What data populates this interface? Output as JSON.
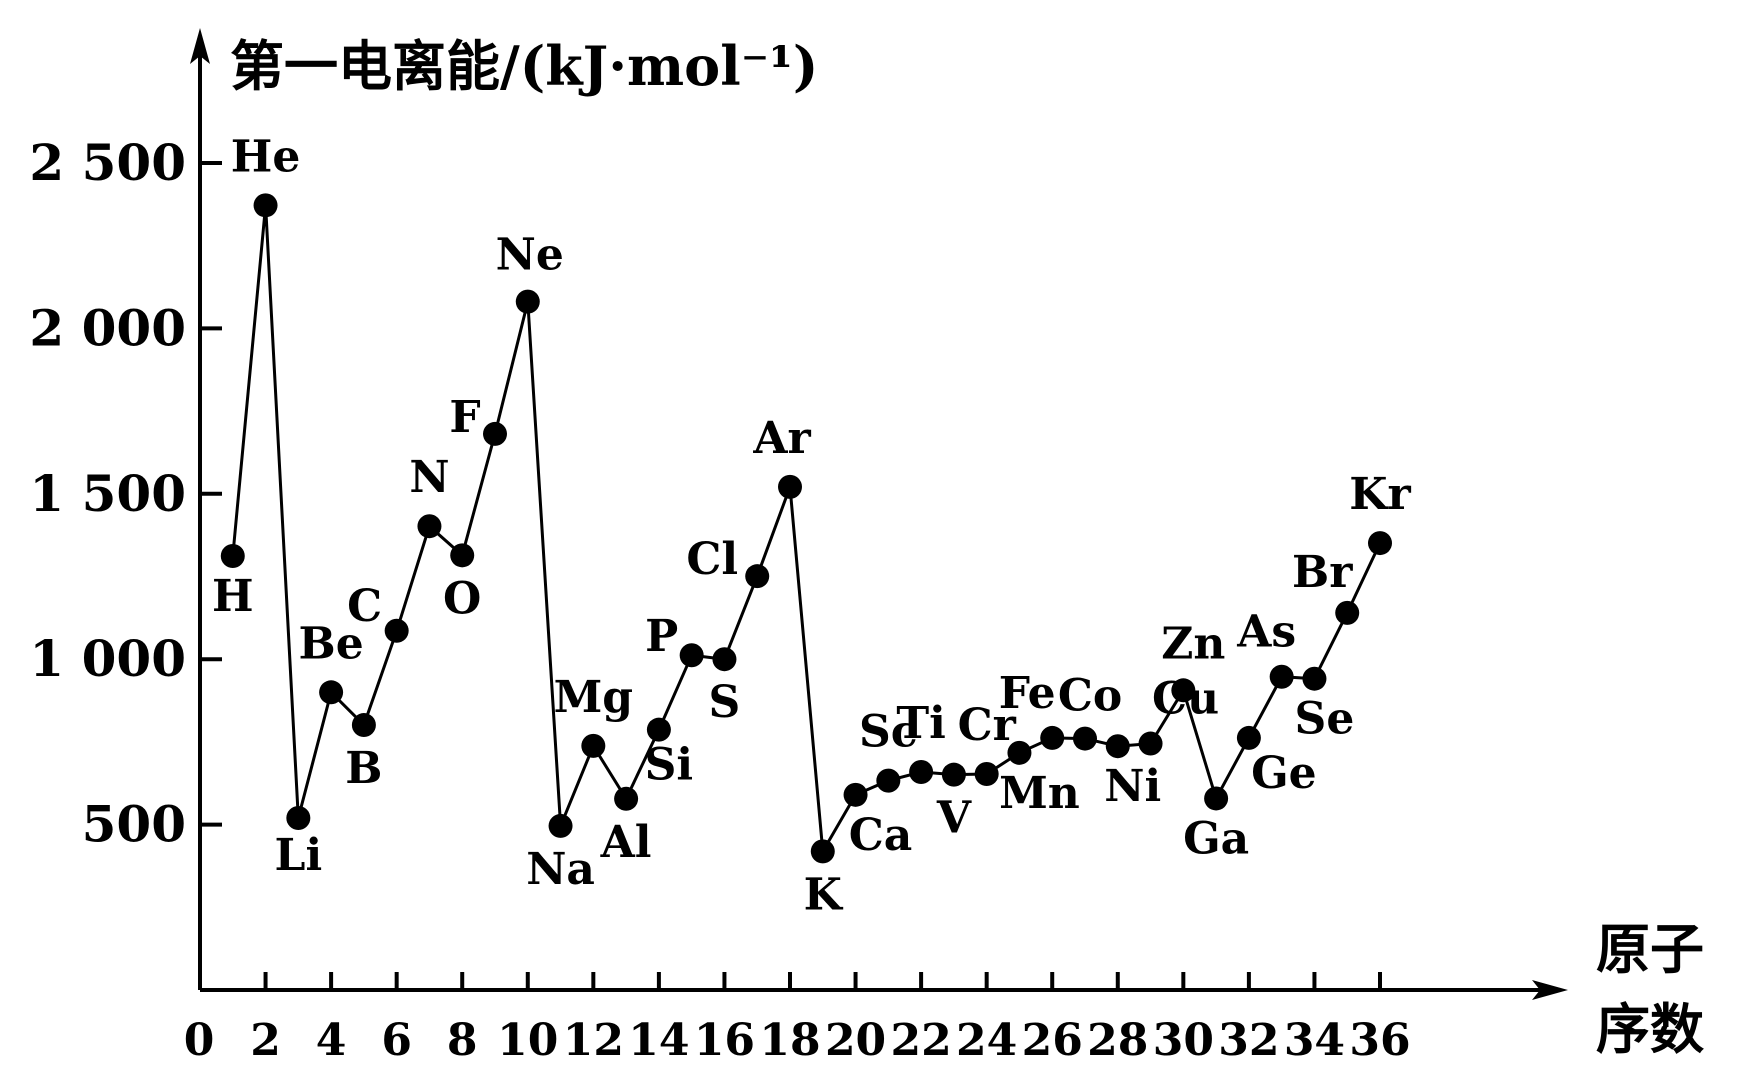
{
  "chart_data": {
    "type": "line",
    "title": "",
    "ylabel": "第一电离能/(kJ·mol⁻¹)",
    "xlabel_lines": [
      "原子",
      "序数"
    ],
    "x_origin_label": "0",
    "xticks": [
      2,
      4,
      6,
      8,
      10,
      12,
      14,
      16,
      18,
      20,
      22,
      24,
      26,
      28,
      30,
      32,
      34,
      36
    ],
    "yticks": [
      500,
      1000,
      1500,
      2000,
      2500
    ],
    "ytick_labels": [
      "500",
      "1 000",
      "1 500",
      "2 000",
      "2 500"
    ],
    "xlim": [
      0,
      36
    ],
    "ylim": [
      0,
      2750
    ],
    "grid": false,
    "series": [
      {
        "points": [
          {
            "x": 1,
            "y": 1312,
            "label": "H"
          },
          {
            "x": 2,
            "y": 2372,
            "label": "He"
          },
          {
            "x": 3,
            "y": 520,
            "label": "Li"
          },
          {
            "x": 4,
            "y": 900,
            "label": "Be"
          },
          {
            "x": 5,
            "y": 801,
            "label": "B"
          },
          {
            "x": 6,
            "y": 1086,
            "label": "C"
          },
          {
            "x": 7,
            "y": 1402,
            "label": "N"
          },
          {
            "x": 8,
            "y": 1314,
            "label": "O"
          },
          {
            "x": 9,
            "y": 1681,
            "label": "F"
          },
          {
            "x": 10,
            "y": 2081,
            "label": "Ne"
          },
          {
            "x": 11,
            "y": 496,
            "label": "Na"
          },
          {
            "x": 12,
            "y": 738,
            "label": "Mg"
          },
          {
            "x": 13,
            "y": 578,
            "label": "Al"
          },
          {
            "x": 14,
            "y": 787,
            "label": "Si"
          },
          {
            "x": 15,
            "y": 1012,
            "label": "P"
          },
          {
            "x": 16,
            "y": 1000,
            "label": "S"
          },
          {
            "x": 17,
            "y": 1251,
            "label": "Cl"
          },
          {
            "x": 18,
            "y": 1521,
            "label": "Ar"
          },
          {
            "x": 19,
            "y": 419,
            "label": "K"
          },
          {
            "x": 20,
            "y": 590,
            "label": "Ca"
          },
          {
            "x": 21,
            "y": 633,
            "label": "Sc"
          },
          {
            "x": 22,
            "y": 659,
            "label": "Ti"
          },
          {
            "x": 23,
            "y": 651,
            "label": "V"
          },
          {
            "x": 24,
            "y": 653,
            "label": "Cr"
          },
          {
            "x": 25,
            "y": 717,
            "label": "Mn"
          },
          {
            "x": 26,
            "y": 762,
            "label": "Fe"
          },
          {
            "x": 27,
            "y": 760,
            "label": "Co"
          },
          {
            "x": 28,
            "y": 737,
            "label": "Ni"
          },
          {
            "x": 29,
            "y": 745,
            "label": "Cu"
          },
          {
            "x": 30,
            "y": 906,
            "label": "Zn"
          },
          {
            "x": 31,
            "y": 579,
            "label": "Ga"
          },
          {
            "x": 32,
            "y": 762,
            "label": "Ge"
          },
          {
            "x": 33,
            "y": 947,
            "label": "As"
          },
          {
            "x": 34,
            "y": 941,
            "label": "Se"
          },
          {
            "x": 35,
            "y": 1140,
            "label": "Br"
          },
          {
            "x": 36,
            "y": 1351,
            "label": "Kr"
          }
        ]
      }
    ]
  }
}
